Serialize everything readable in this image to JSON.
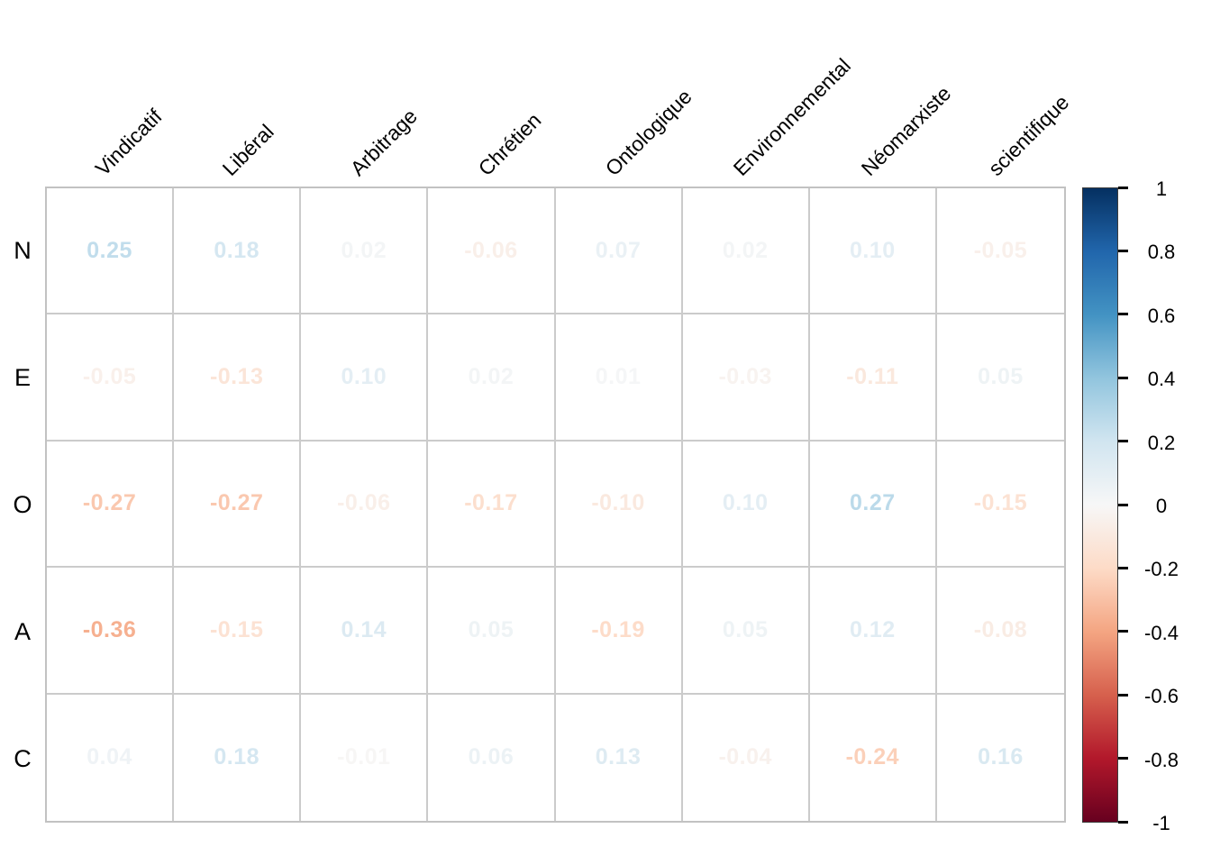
{
  "chart_data": {
    "type": "heatmap",
    "subtype": "correlation-matrix-coefficients",
    "rows": [
      "N",
      "E",
      "O",
      "A",
      "C"
    ],
    "columns": [
      "Vindicatif",
      "Libéral",
      "Arbitrage",
      "Chrétien",
      "Ontologique",
      "Environnemental",
      "Néomarxiste",
      "scientifique"
    ],
    "values": [
      [
        "0.25",
        "0.18",
        "0.02",
        "-0.06",
        "0.07",
        "0.02",
        "0.10",
        "-0.05"
      ],
      [
        "-0.05",
        "-0.13",
        "0.10",
        "0.02",
        "0.01",
        "-0.03",
        "-0.11",
        "0.05"
      ],
      [
        "-0.27",
        "-0.27",
        "-0.06",
        "-0.17",
        "-0.10",
        "0.10",
        "0.27",
        "-0.15"
      ],
      [
        "-0.36",
        "-0.15",
        "0.14",
        "0.05",
        "-0.19",
        "0.05",
        "0.12",
        "-0.08"
      ],
      [
        "0.04",
        "0.18",
        "-0.01",
        "0.06",
        "0.13",
        "-0.04",
        "-0.24",
        "0.16"
      ]
    ],
    "value_range": [
      -1,
      1
    ],
    "cell_background": "#ffffff",
    "grid_color": "#c8c8c8",
    "colormap": {
      "name": "RdBu",
      "stops_low_to_high": [
        "#67001F",
        "#B2182B",
        "#D6604D",
        "#F4A582",
        "#FDDBC7",
        "#F7F7F7",
        "#D1E5F0",
        "#92C5DE",
        "#4393C3",
        "#2166AC",
        "#053061"
      ]
    },
    "colorbar": {
      "position": "right",
      "orientation": "vertical",
      "tick_labels": [
        "1",
        "0.8",
        "0.6",
        "0.4",
        "0.2",
        "0",
        "-0.2",
        "-0.4",
        "-0.6",
        "-0.8",
        "-1"
      ],
      "tick_values": [
        1,
        0.8,
        0.6,
        0.4,
        0.2,
        0,
        -0.2,
        -0.4,
        -0.6,
        -0.8,
        -1
      ]
    },
    "legend_position": "right",
    "grid_on": true,
    "title": "",
    "xlabel": "",
    "ylabel": ""
  }
}
